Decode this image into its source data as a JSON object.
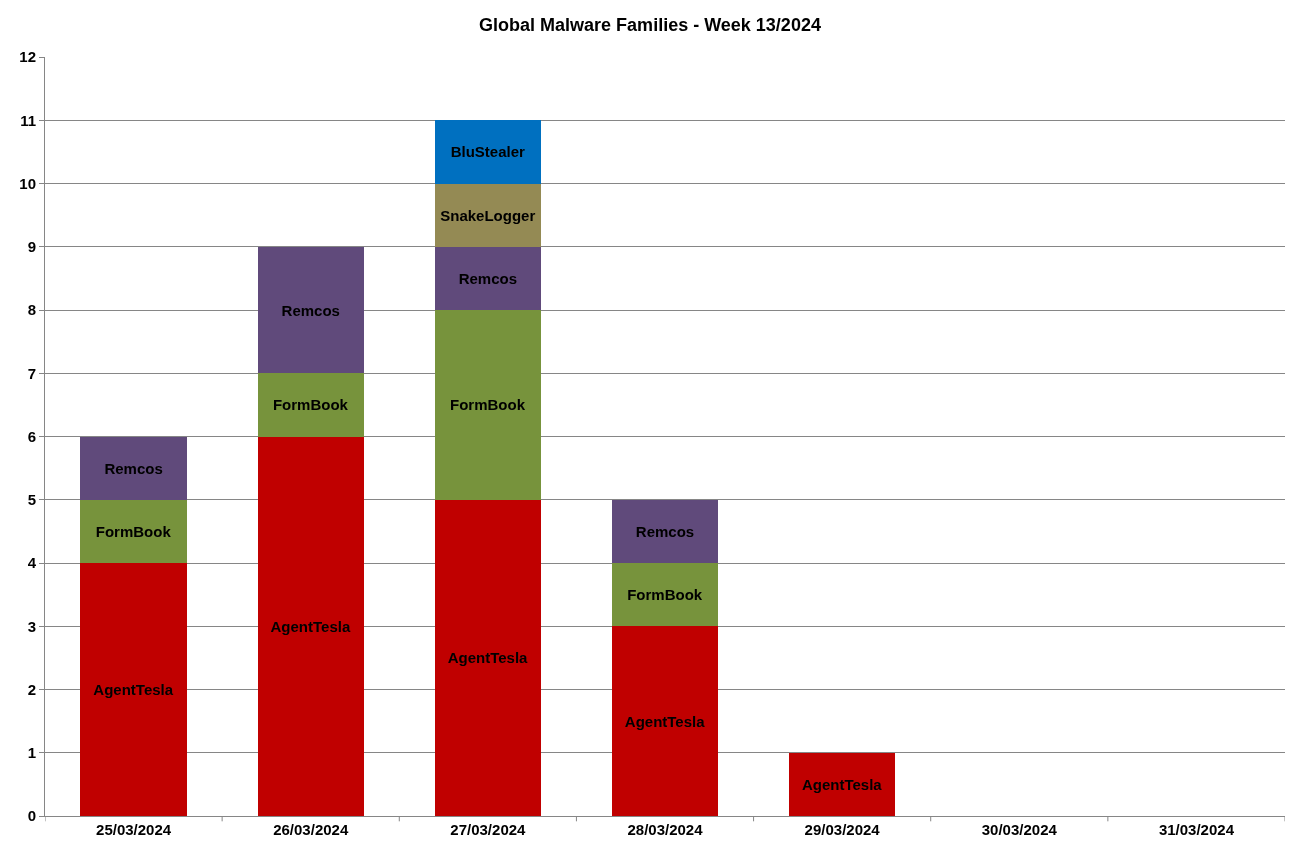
{
  "chart_data": {
    "type": "bar",
    "title": "Global Malware Families - Week 13/2024",
    "categories": [
      "25/03/2024",
      "26/03/2024",
      "27/03/2024",
      "28/03/2024",
      "29/03/2024",
      "30/03/2024",
      "31/03/2024"
    ],
    "stacked": true,
    "series": [
      {
        "name": "AgentTesla",
        "color": "#c00000",
        "values": [
          4,
          6,
          5,
          3,
          1,
          null,
          null
        ]
      },
      {
        "name": "FormBook",
        "color": "#77933c",
        "values": [
          1,
          1,
          3,
          1,
          null,
          null,
          null
        ]
      },
      {
        "name": "Remcos",
        "color": "#604a7b",
        "values": [
          1,
          2,
          1,
          1,
          null,
          null,
          null
        ]
      },
      {
        "name": "SnakeLogger",
        "color": "#948a54",
        "values": [
          null,
          null,
          1,
          null,
          null,
          null,
          null
        ]
      },
      {
        "name": "BluStealer",
        "color": "#0070c0",
        "values": [
          null,
          null,
          1,
          null,
          null,
          null,
          null
        ]
      }
    ],
    "ylim": [
      0,
      12
    ],
    "yticks": [
      0,
      1,
      2,
      3,
      4,
      5,
      6,
      7,
      8,
      9,
      10,
      11,
      12
    ],
    "grid": "y",
    "legend": false
  }
}
